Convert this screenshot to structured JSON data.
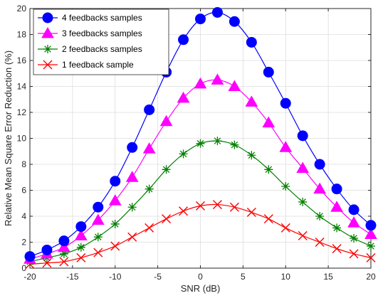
{
  "chart_data": {
    "type": "line",
    "title": "",
    "xlabel": "SNR (dB)",
    "ylabel": "Relative Mean Square Error Reduction (%)",
    "xlim": [
      -20,
      20
    ],
    "ylim": [
      0,
      20
    ],
    "xticks": [
      -20,
      -15,
      -10,
      -5,
      0,
      5,
      10,
      15,
      20
    ],
    "yticks": [
      0,
      2,
      4,
      6,
      8,
      10,
      12,
      14,
      16,
      18,
      20
    ],
    "grid": true,
    "legend_position": "top-left",
    "x": [
      -20,
      -18,
      -16,
      -14,
      -12,
      -10,
      -8,
      -6,
      -4,
      -2,
      0,
      2,
      4,
      6,
      8,
      10,
      12,
      14,
      16,
      18,
      20
    ],
    "series": [
      {
        "name": "4 feedbacks samples",
        "color": "#0000ff",
        "marker": "circle",
        "values": [
          0.9,
          1.4,
          2.1,
          3.2,
          4.7,
          6.7,
          9.3,
          12.2,
          15.1,
          17.6,
          19.2,
          19.7,
          19.0,
          17.4,
          15.1,
          12.7,
          10.2,
          8.0,
          6.1,
          4.5,
          3.3
        ]
      },
      {
        "name": "3 feedbacks samples",
        "color": "#ff00ff",
        "marker": "triangle",
        "values": [
          0.7,
          1.1,
          1.6,
          2.5,
          3.7,
          5.2,
          7.0,
          9.2,
          11.3,
          13.1,
          14.2,
          14.5,
          14.0,
          12.8,
          11.2,
          9.3,
          7.7,
          6.1,
          4.7,
          3.5,
          2.6
        ]
      },
      {
        "name": "2 feedbacks samples",
        "color": "#008000",
        "marker": "asterisk",
        "values": [
          0.5,
          0.8,
          1.1,
          1.6,
          2.4,
          3.4,
          4.7,
          6.1,
          7.6,
          8.8,
          9.6,
          9.8,
          9.5,
          8.7,
          7.6,
          6.3,
          5.1,
          4.0,
          3.1,
          2.3,
          1.7
        ]
      },
      {
        "name": "1 feedback sample",
        "color": "#ff0000",
        "marker": "x",
        "values": [
          0.3,
          0.4,
          0.5,
          0.8,
          1.2,
          1.7,
          2.4,
          3.1,
          3.8,
          4.4,
          4.8,
          4.9,
          4.7,
          4.3,
          3.8,
          3.1,
          2.5,
          2.0,
          1.5,
          1.1,
          0.8
        ]
      }
    ]
  }
}
